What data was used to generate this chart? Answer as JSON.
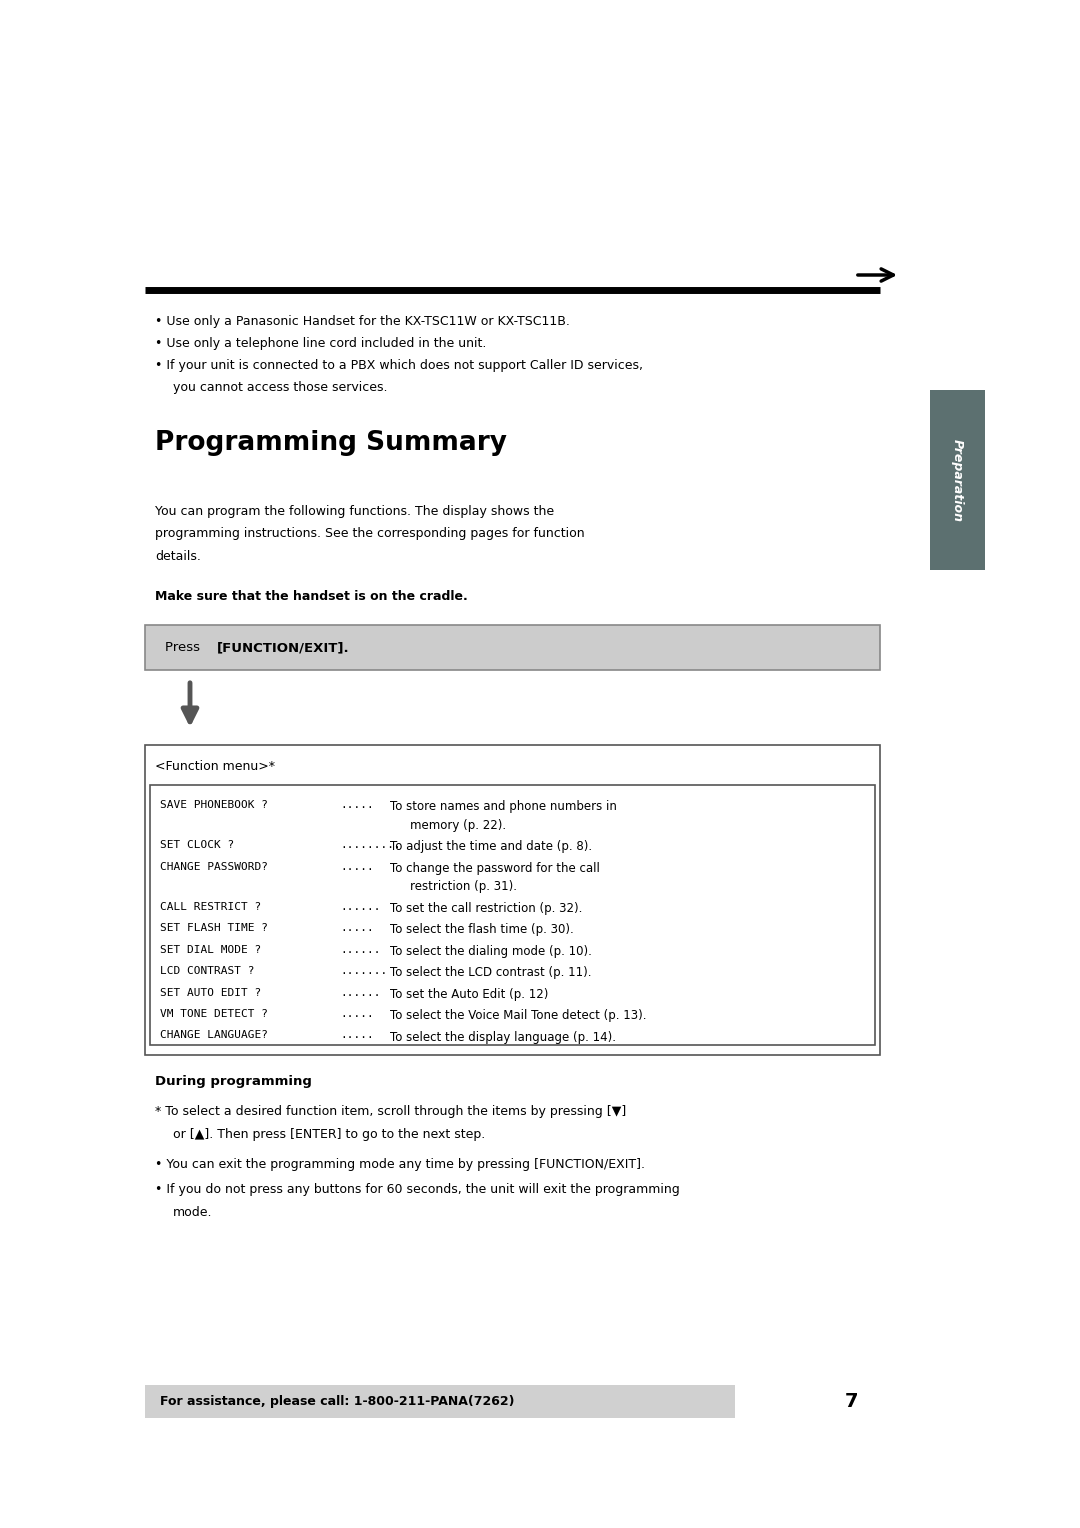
{
  "bg_color": "#ffffff",
  "page_number": "7",
  "bullet_lines": [
    "Use only a Panasonic Handset for the KX-TSC11W or KX-TSC11B.",
    "Use only a telephone line cord included in the unit.",
    "If your unit is connected to a PBX which does not support Caller ID services,",
    "you cannot access those services."
  ],
  "section_title": "Programming Summary",
  "intro_lines": [
    "You can program the following functions. The display shows the",
    "programming instructions. See the corresponding pages for function",
    "details."
  ],
  "bold_note": "Make sure that the handset is on the cradle.",
  "press_normal": "Press ",
  "press_bold": "[FUNCTION/EXIT].",
  "function_menu_label": "<Function menu>*",
  "menu_items": [
    [
      "SAVE PHONEBOOK ?",
      ".....",
      "To store names and phone numbers in",
      "memory (p. 22)."
    ],
    [
      "SET CLOCK ?",
      ".........",
      "To adjust the time and date (p. 8).",
      ""
    ],
    [
      "CHANGE PASSWORD?",
      ".....",
      "To change the password for the call",
      "restriction (p. 31)."
    ],
    [
      "CALL RESTRICT ?",
      "......",
      "To set the call restriction (p. 32).",
      ""
    ],
    [
      "SET FLASH TIME ?",
      ".....",
      "To select the flash time (p. 30).",
      ""
    ],
    [
      "SET DIAL MODE ?",
      "......",
      "To select the dialing mode (p. 10).",
      ""
    ],
    [
      "LCD CONTRAST ?",
      ".......",
      "To select the LCD contrast (p. 11).",
      ""
    ],
    [
      "SET AUTO EDIT ?",
      "......",
      "To set the Auto Edit (p. 12)",
      ""
    ],
    [
      "VM TONE DETECT ?",
      ".....",
      "To select the Voice Mail Tone detect (p. 13).",
      ""
    ],
    [
      "CHANGE LANGUAGE?",
      ".....",
      "To select the display language (p. 14).",
      ""
    ]
  ],
  "during_title": "During programming",
  "during_star": "* To select a desired function item, scroll through the items by pressing [▼]",
  "during_star2": "  or [▲]. Then press [ENTER] to go to the next step.",
  "during_star_bold_parts": [
    "[▼]",
    "[▲]",
    "[ENTER]"
  ],
  "during_bullet1": "You can exit the programming mode any time by pressing [FUNCTION/EXIT].",
  "during_bullet1_bold": "[FUNCTION/EXIT]",
  "during_bullet2": "If you do not press any buttons for 60 seconds, the unit will exit the programming",
  "during_bullet2b": "mode.",
  "footer_text": "For assistance, please call: 1-800-211-PANA(7262)",
  "tab_color": "#5c7070",
  "tab_text": "Preparation"
}
